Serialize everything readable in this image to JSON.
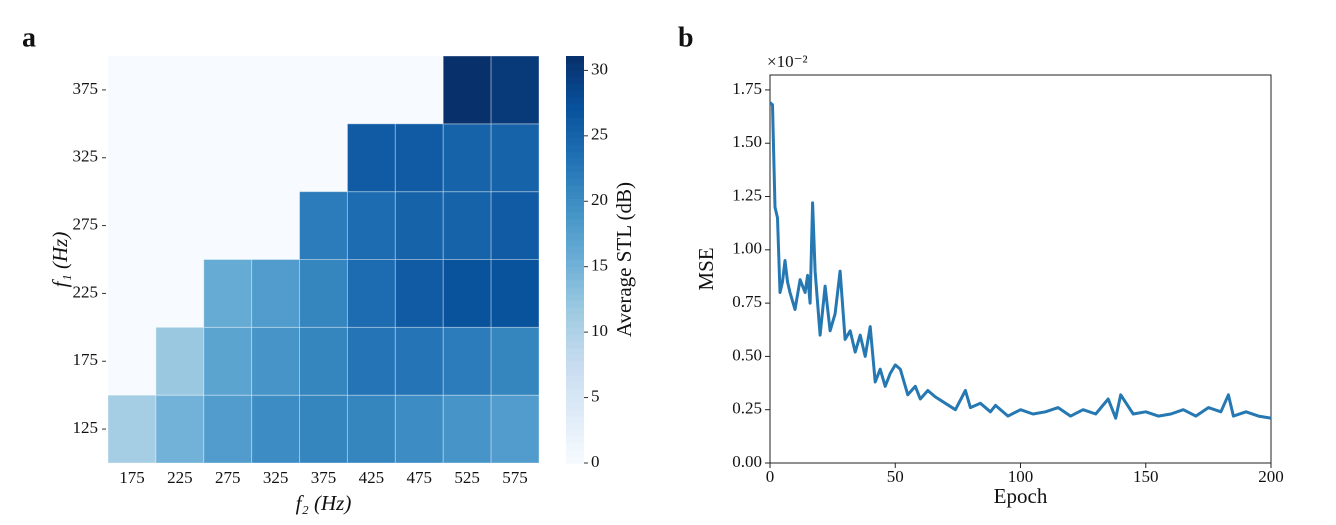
{
  "chart_data": [
    {
      "type": "heatmap",
      "panel_label": "a",
      "x_label": "f₂ (Hz)",
      "y_label": "f₁ (Hz)",
      "categories": [
        "175",
        "225",
        "275",
        "325",
        "375",
        "425",
        "475",
        "525",
        "575"
      ],
      "y_categories": [
        "125",
        "175",
        "225",
        "275",
        "325",
        "375"
      ],
      "values": [
        [
          11,
          15,
          18,
          20,
          21,
          21,
          20,
          19,
          18
        ],
        [
          null,
          12,
          17,
          19,
          21,
          23,
          23,
          22,
          21
        ],
        [
          null,
          null,
          16,
          18,
          21,
          24,
          26,
          27,
          27
        ],
        [
          null,
          null,
          null,
          null,
          22,
          24,
          25,
          25,
          26
        ],
        [
          null,
          null,
          null,
          null,
          null,
          26,
          26,
          25,
          25
        ],
        [
          null,
          null,
          null,
          null,
          null,
          null,
          null,
          31,
          30
        ]
      ],
      "colormap": "Blues",
      "colorbar_label": "Average STL (dB)",
      "clim": [
        0,
        31.1
      ],
      "cticks": [
        0,
        5,
        10,
        15,
        20,
        25,
        30
      ]
    },
    {
      "type": "line",
      "panel_label": "b",
      "x_label": "Epoch",
      "y_label": "MSE",
      "y_offset_label": "×10⁻²",
      "x": [
        0,
        1,
        2,
        3,
        4,
        5,
        6,
        7,
        8,
        10,
        12,
        14,
        15,
        16,
        17,
        18,
        20,
        22,
        24,
        26,
        28,
        30,
        32,
        34,
        36,
        38,
        40,
        42,
        44,
        46,
        48,
        50,
        52,
        55,
        58,
        60,
        63,
        66,
        70,
        74,
        78,
        80,
        84,
        88,
        90,
        95,
        100,
        105,
        110,
        115,
        120,
        125,
        130,
        135,
        138,
        140,
        145,
        150,
        155,
        160,
        165,
        170,
        175,
        180,
        183,
        185,
        190,
        195,
        200
      ],
      "series": [
        {
          "color": "#2678b2",
          "values": [
            1.69,
            1.68,
            1.2,
            1.15,
            0.8,
            0.85,
            0.95,
            0.85,
            0.8,
            0.72,
            0.86,
            0.8,
            0.88,
            0.75,
            1.22,
            0.9,
            0.6,
            0.83,
            0.62,
            0.7,
            0.9,
            0.58,
            0.62,
            0.52,
            0.6,
            0.5,
            0.64,
            0.38,
            0.44,
            0.36,
            0.42,
            0.46,
            0.44,
            0.32,
            0.36,
            0.3,
            0.34,
            0.31,
            0.28,
            0.25,
            0.34,
            0.26,
            0.28,
            0.24,
            0.27,
            0.22,
            0.25,
            0.23,
            0.24,
            0.26,
            0.22,
            0.25,
            0.23,
            0.3,
            0.21,
            0.32,
            0.23,
            0.24,
            0.22,
            0.23,
            0.25,
            0.22,
            0.26,
            0.24,
            0.32,
            0.22,
            0.24,
            0.22,
            0.21
          ]
        }
      ],
      "xlim": [
        0,
        200
      ],
      "xticks": [
        0,
        50,
        100,
        150,
        200
      ],
      "ylim": [
        0,
        1.82
      ],
      "yticks": [
        {
          "value": 0,
          "label": "0.00"
        },
        {
          "value": 0.25,
          "label": "0.25"
        },
        {
          "value": 0.5,
          "label": "0.50"
        },
        {
          "value": 0.75,
          "label": "0.75"
        },
        {
          "value": 1,
          "label": "1.00"
        },
        {
          "value": 1.25,
          "label": "1.25"
        },
        {
          "value": 1.5,
          "label": "1.50"
        },
        {
          "value": 1.75,
          "label": "1.75"
        }
      ]
    }
  ]
}
